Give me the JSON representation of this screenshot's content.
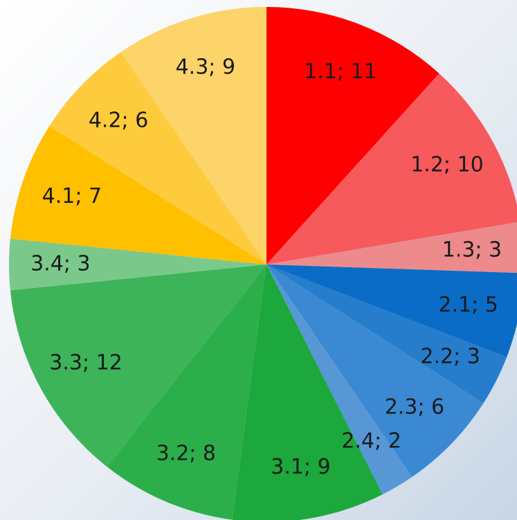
{
  "chart_data": {
    "type": "pie",
    "values": [
      11,
      10,
      3,
      5,
      3,
      6,
      2,
      9,
      8,
      12,
      3,
      7,
      6,
      9
    ],
    "value_labels": [
      "1.1; 11",
      "1.2; 10",
      "1.3; 3",
      "2.1; 5",
      "2.2; 3",
      "2.3; 6",
      "2.4; 2",
      "3.1; 9",
      "3.2; 8",
      "3.3; 12",
      "3.4; 3",
      "4.1; 7",
      "4.2; 6",
      "4.3; 9"
    ],
    "colors": [
      "#ff0000",
      "#f65a5c",
      "#ec8a8c",
      "#0a6cc6",
      "#267dcc",
      "#3a89d2",
      "#5797d6",
      "#1ca83c",
      "#2caf4b",
      "#3db45a",
      "#7ac98b",
      "#ffc000",
      "#fdcb3c",
      "#fdd46a"
    ]
  }
}
